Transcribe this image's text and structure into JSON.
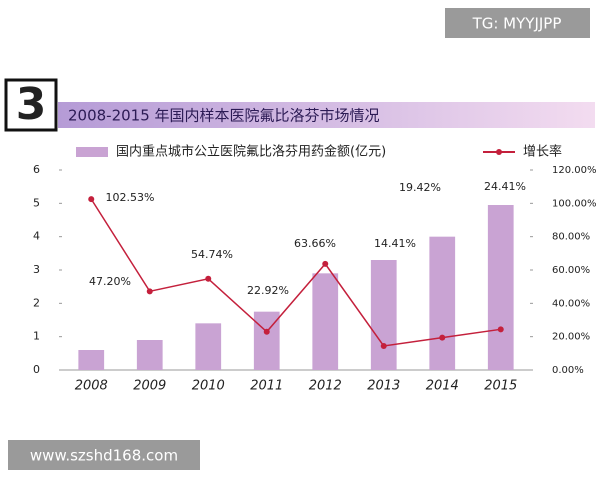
{
  "badge": "3",
  "watermark_top": "TG: MYYJJPP",
  "watermark_bottom": "www.szshd168.com",
  "chart_data": {
    "type": "bar-line",
    "title": "2008-2015 年国内样本医院氟比洛芬市场情况",
    "categories": [
      "2008",
      "2009",
      "2010",
      "2011",
      "2012",
      "2013",
      "2014",
      "2015"
    ],
    "series": [
      {
        "name": "国内重点城市公立医院氟比洛芬用药金额(亿元)",
        "type": "bar",
        "color": "#c9a3d3",
        "values": [
          0.6,
          0.9,
          1.4,
          1.75,
          2.9,
          3.3,
          4.0,
          4.95
        ]
      },
      {
        "name": "增长率",
        "type": "line",
        "axis": "y2",
        "color": "#c4203c",
        "values": [
          102.53,
          47.2,
          54.74,
          22.92,
          63.66,
          14.41,
          19.42,
          24.41
        ],
        "value_labels": [
          "102.53%",
          "47.20%",
          "54.74%",
          "22.92%",
          "63.66%",
          "14.41%",
          "19.42%",
          "24.41%"
        ]
      }
    ],
    "ylim": [
      0,
      6
    ],
    "yticks": [
      0,
      1,
      2,
      3,
      4,
      5,
      6
    ],
    "y2lim": [
      0,
      120
    ],
    "y2ticks": [
      {
        "value": 0,
        "label": "0.00%"
      },
      {
        "value": 20,
        "label": "20.00%"
      },
      {
        "value": 40,
        "label": "40.00%"
      },
      {
        "value": 60,
        "label": "60.00%"
      },
      {
        "value": 80,
        "label": "80.00%"
      },
      {
        "value": 100,
        "label": "100.00%"
      },
      {
        "value": 120,
        "label": "120.00%"
      }
    ]
  }
}
